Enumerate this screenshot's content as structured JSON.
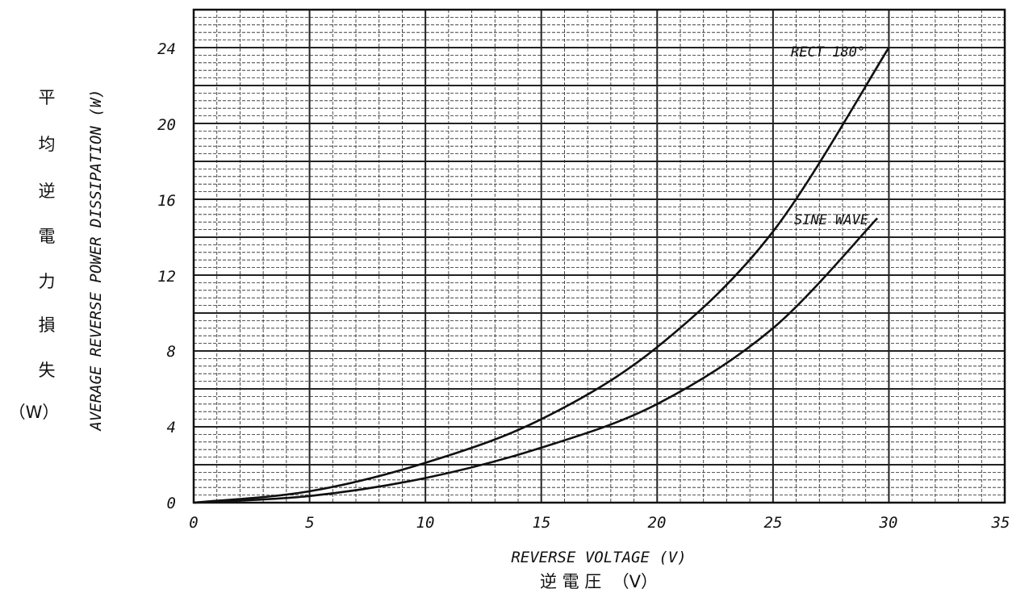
{
  "chart_data": {
    "type": "line",
    "xlabel": "REVERSE VOLTAGE (V)",
    "xlabel_jp": "逆 電 圧  （V）",
    "ylabel": "AVERAGE REVERSE POWER DISSIPATION (W)",
    "ylabel_jp": [
      "平",
      "均",
      "逆",
      "電",
      "力",
      "損",
      "失",
      "（W）"
    ],
    "xlim": [
      0,
      35
    ],
    "ylim": [
      0,
      26
    ],
    "x_ticks": [
      "0",
      "5",
      "10",
      "15",
      "20",
      "25",
      "30",
      "35"
    ],
    "y_ticks": [
      "0",
      "4",
      "8",
      "12",
      "16",
      "20",
      "24"
    ],
    "grid": true,
    "series": [
      {
        "name": "RECT 180°",
        "x": [
          0,
          5,
          10,
          15,
          20,
          25,
          30
        ],
        "y": [
          0,
          0.6,
          2.1,
          4.4,
          8.2,
          14.3,
          24.0
        ]
      },
      {
        "name": "SINE WAVE",
        "x": [
          0,
          5,
          10,
          15,
          20,
          25,
          29.5
        ],
        "y": [
          0,
          0.35,
          1.3,
          2.9,
          5.2,
          9.2,
          15.0
        ]
      }
    ]
  }
}
